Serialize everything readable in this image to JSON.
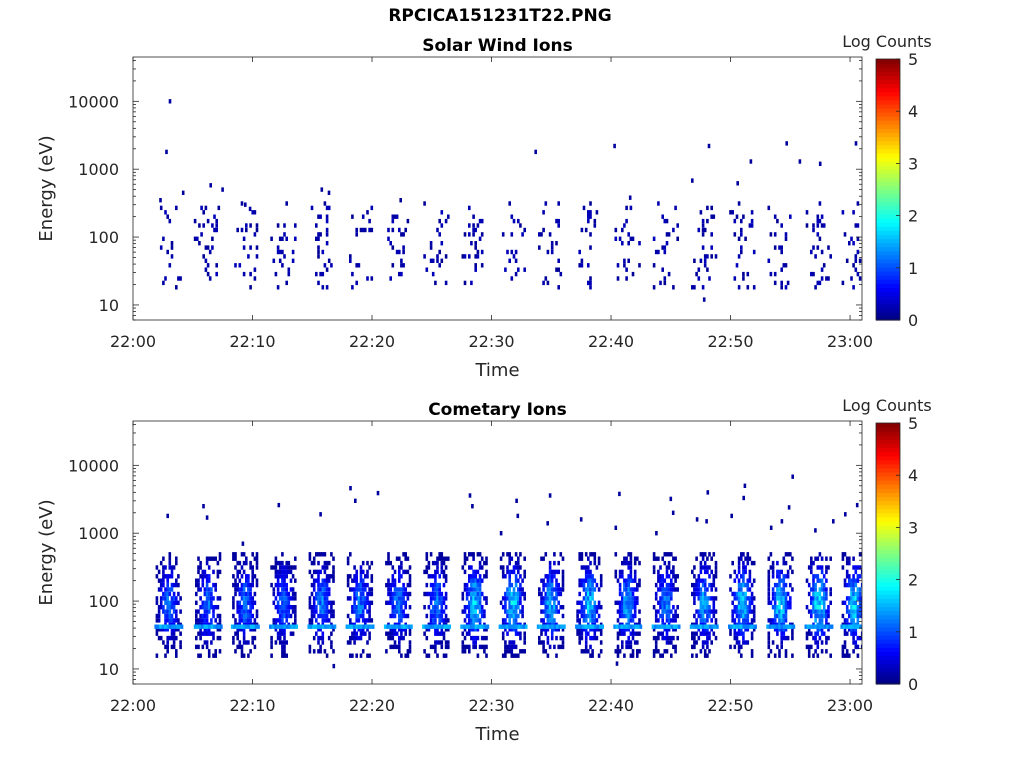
{
  "figure": {
    "title": "RPCICA151231T22.PNG"
  },
  "chart_data": [
    {
      "type": "heatmap",
      "title": "Solar Wind Ions",
      "xlabel": "Time",
      "ylabel": "Energy (eV)",
      "x_ticks": [
        "22:00",
        "22:10",
        "22:20",
        "22:30",
        "22:40",
        "22:50",
        "23:00"
      ],
      "xlim": [
        "22:00",
        "23:01"
      ],
      "y_scale": "log",
      "y_ticks": [
        "10",
        "100",
        "1000",
        "10000"
      ],
      "ylim": [
        6,
        45000
      ],
      "colorbar": {
        "label": "Log Counts",
        "ticks": [
          "0",
          "1",
          "2",
          "3",
          "4",
          "5"
        ],
        "range": [
          0,
          5
        ],
        "colormap": "jet"
      },
      "grid": false,
      "sweeps_minutes": [
        3.0,
        6.2,
        9.4,
        12.6,
        15.8,
        19.0,
        22.2,
        25.4,
        28.6,
        31.8,
        35.0,
        38.2,
        41.4,
        44.6,
        47.8,
        51.0,
        54.2,
        57.4,
        60.4
      ],
      "core_energy_range_eV": [
        20,
        300
      ],
      "typical_log_counts": 0.2,
      "sparse_points": [
        {
          "t": 3.1,
          "e": 10000
        },
        {
          "t": 2.8,
          "e": 1800
        },
        {
          "t": 2.3,
          "e": 350
        },
        {
          "t": 4.2,
          "e": 450
        },
        {
          "t": 6.5,
          "e": 580
        },
        {
          "t": 7.5,
          "e": 500
        },
        {
          "t": 9.4,
          "e": 300
        },
        {
          "t": 9.8,
          "e": 260
        },
        {
          "t": 15.8,
          "e": 500
        },
        {
          "t": 16.4,
          "e": 450
        },
        {
          "t": 22.4,
          "e": 350
        },
        {
          "t": 33.7,
          "e": 1800
        },
        {
          "t": 40.3,
          "e": 2200
        },
        {
          "t": 41.6,
          "e": 380
        },
        {
          "t": 46.8,
          "e": 680
        },
        {
          "t": 48.2,
          "e": 2200
        },
        {
          "t": 50.6,
          "e": 620
        },
        {
          "t": 51.7,
          "e": 1300
        },
        {
          "t": 54.7,
          "e": 2400
        },
        {
          "t": 55.8,
          "e": 1300
        },
        {
          "t": 57.5,
          "e": 1200
        },
        {
          "t": 60.5,
          "e": 2400
        },
        {
          "t": 47.8,
          "e": 12
        }
      ]
    },
    {
      "type": "heatmap",
      "title": "Cometary Ions",
      "xlabel": "Time",
      "ylabel": "Energy (eV)",
      "x_ticks": [
        "22:00",
        "22:10",
        "22:20",
        "22:30",
        "22:40",
        "22:50",
        "23:00"
      ],
      "xlim": [
        "22:00",
        "23:01"
      ],
      "y_scale": "log",
      "y_ticks": [
        "10",
        "100",
        "1000",
        "10000"
      ],
      "ylim": [
        6,
        45000
      ],
      "colorbar": {
        "label": "Log Counts",
        "ticks": [
          "0",
          "1",
          "2",
          "3",
          "4",
          "5"
        ],
        "range": [
          0,
          5
        ],
        "colormap": "jet"
      },
      "grid": false,
      "sweeps_minutes": [
        3.0,
        6.3,
        9.4,
        12.6,
        15.8,
        19.0,
        22.2,
        25.4,
        28.6,
        31.8,
        35.0,
        38.2,
        41.4,
        44.6,
        47.8,
        51.0,
        54.2,
        57.4,
        60.4
      ],
      "core_energy_range_eV": [
        17,
        500
      ],
      "peak_log_counts": [
        1.3,
        1.3,
        1.3,
        1.3,
        1.4,
        1.4,
        1.4,
        1.4,
        1.8,
        1.9,
        1.7,
        1.8,
        1.6,
        1.4,
        1.6,
        1.8,
        1.9,
        2.0,
        1.9
      ],
      "sparse_points": [
        {
          "t": 2.9,
          "e": 1800
        },
        {
          "t": 5.9,
          "e": 2500
        },
        {
          "t": 6.2,
          "e": 1700
        },
        {
          "t": 9.2,
          "e": 700
        },
        {
          "t": 12.2,
          "e": 2600
        },
        {
          "t": 15.7,
          "e": 1900
        },
        {
          "t": 18.2,
          "e": 4600
        },
        {
          "t": 18.6,
          "e": 3000
        },
        {
          "t": 20.5,
          "e": 3900
        },
        {
          "t": 28.2,
          "e": 3600
        },
        {
          "t": 28.4,
          "e": 2500
        },
        {
          "t": 30.8,
          "e": 1000
        },
        {
          "t": 32.1,
          "e": 3000
        },
        {
          "t": 32.2,
          "e": 1800
        },
        {
          "t": 34.9,
          "e": 3600
        },
        {
          "t": 34.7,
          "e": 1400
        },
        {
          "t": 37.5,
          "e": 1600
        },
        {
          "t": 40.7,
          "e": 3800
        },
        {
          "t": 40.4,
          "e": 1200
        },
        {
          "t": 43.8,
          "e": 1000
        },
        {
          "t": 45.0,
          "e": 3200
        },
        {
          "t": 45.2,
          "e": 2000
        },
        {
          "t": 47.2,
          "e": 1600
        },
        {
          "t": 48.1,
          "e": 4000
        },
        {
          "t": 48.0,
          "e": 1500
        },
        {
          "t": 50.1,
          "e": 1800
        },
        {
          "t": 51.2,
          "e": 5000
        },
        {
          "t": 51.1,
          "e": 3300
        },
        {
          "t": 53.4,
          "e": 1200
        },
        {
          "t": 54.3,
          "e": 1500
        },
        {
          "t": 54.9,
          "e": 2400
        },
        {
          "t": 55.2,
          "e": 6800
        },
        {
          "t": 57.1,
          "e": 1100
        },
        {
          "t": 58.6,
          "e": 1500
        },
        {
          "t": 59.6,
          "e": 1900
        },
        {
          "t": 60.6,
          "e": 2600
        },
        {
          "t": 16.8,
          "e": 11
        },
        {
          "t": 40.5,
          "e": 12
        }
      ]
    }
  ]
}
